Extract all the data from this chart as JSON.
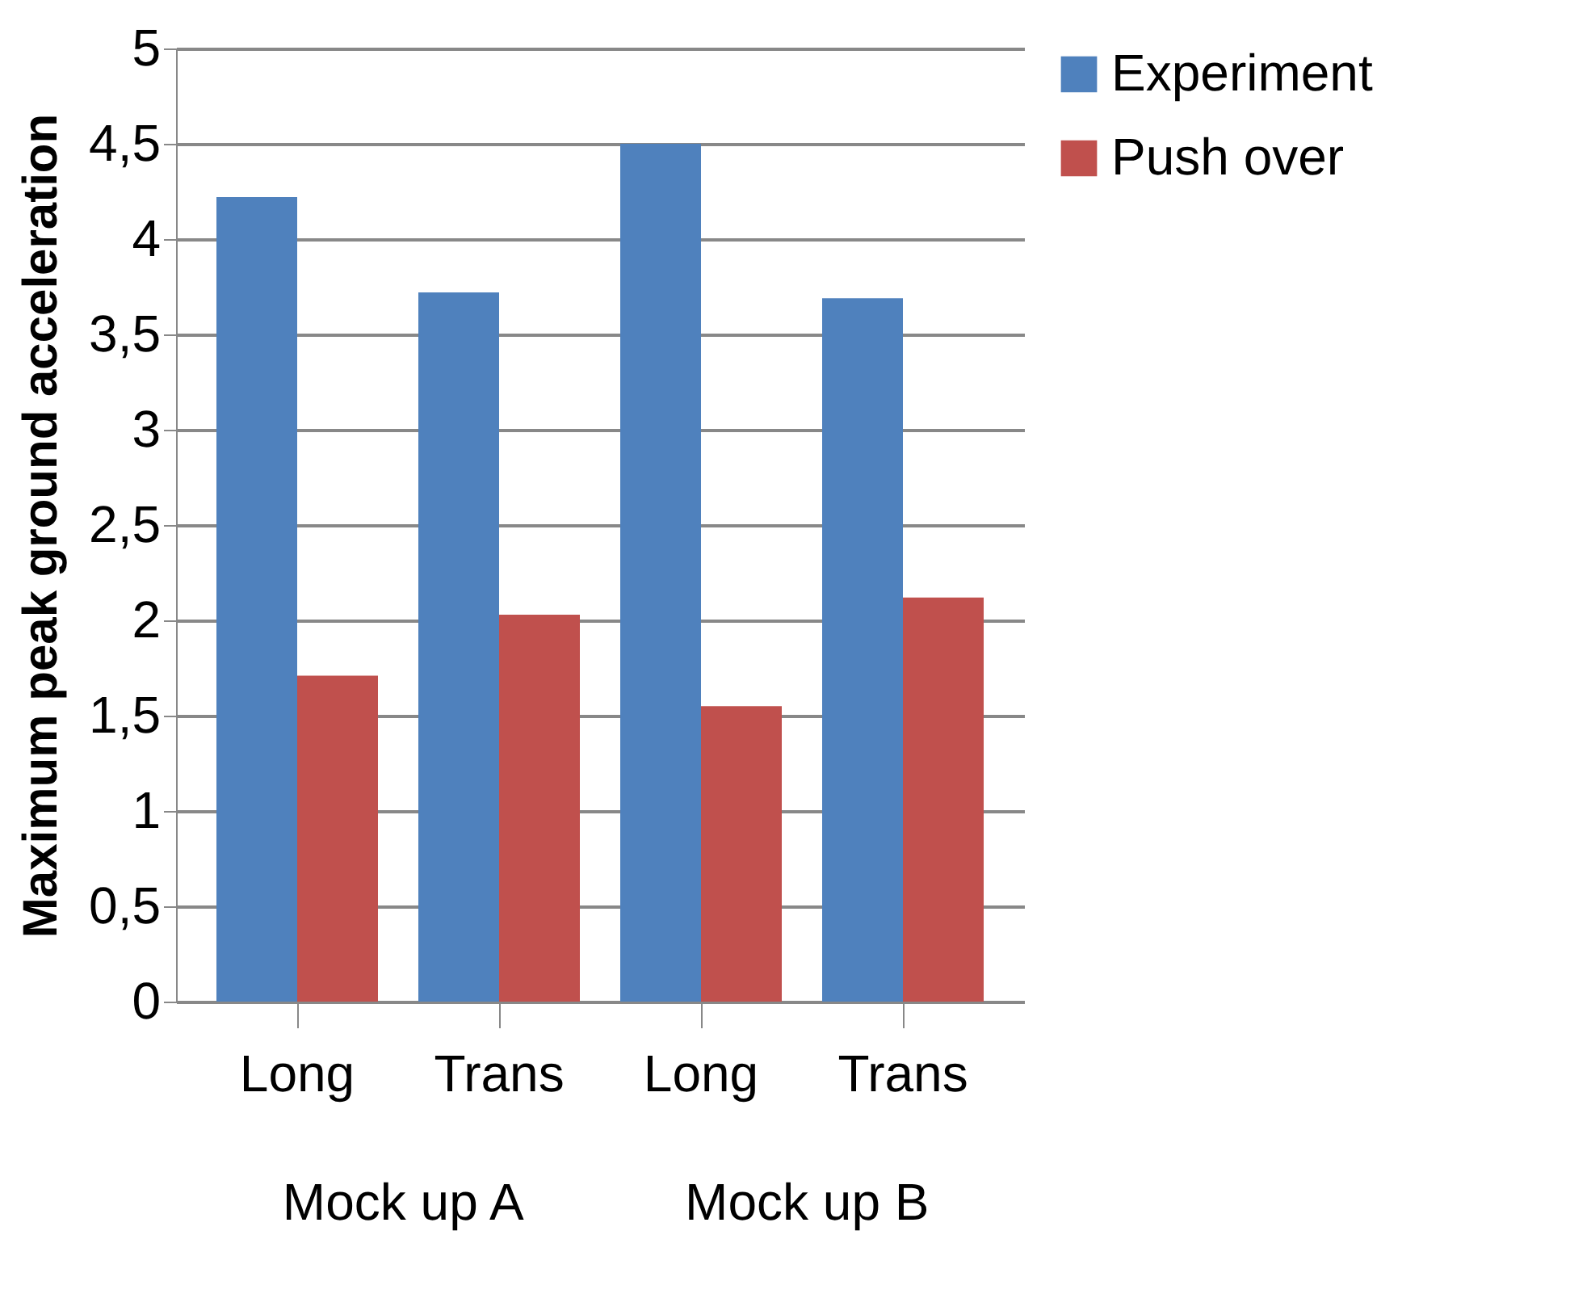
{
  "chart_data": {
    "type": "bar",
    "ylabel": "Maximum peak ground acceleration",
    "categories": [
      "Long",
      "Trans",
      "Long",
      "Trans"
    ],
    "series": [
      {
        "name": "Experiment",
        "color": "#4f81bd",
        "values": [
          4.22,
          3.72,
          4.5,
          3.69
        ]
      },
      {
        "name": "Push over",
        "color": "#c0504d",
        "values": [
          1.71,
          2.03,
          1.55,
          2.12
        ]
      }
    ],
    "ylim": [
      0,
      5
    ],
    "yticks": [
      0,
      {
        "value": 0.5,
        "label": "0,5"
      },
      1,
      {
        "value": 1.5,
        "label": "1,5"
      },
      2,
      {
        "value": 2.5,
        "label": "2,5"
      },
      3,
      {
        "value": 3.5,
        "label": "3,5"
      },
      4,
      {
        "value": 4.5,
        "label": "4,5"
      },
      5
    ],
    "annotations": [
      "Mock up A",
      "Mock up B"
    ],
    "grid": "y",
    "legend": "right"
  }
}
